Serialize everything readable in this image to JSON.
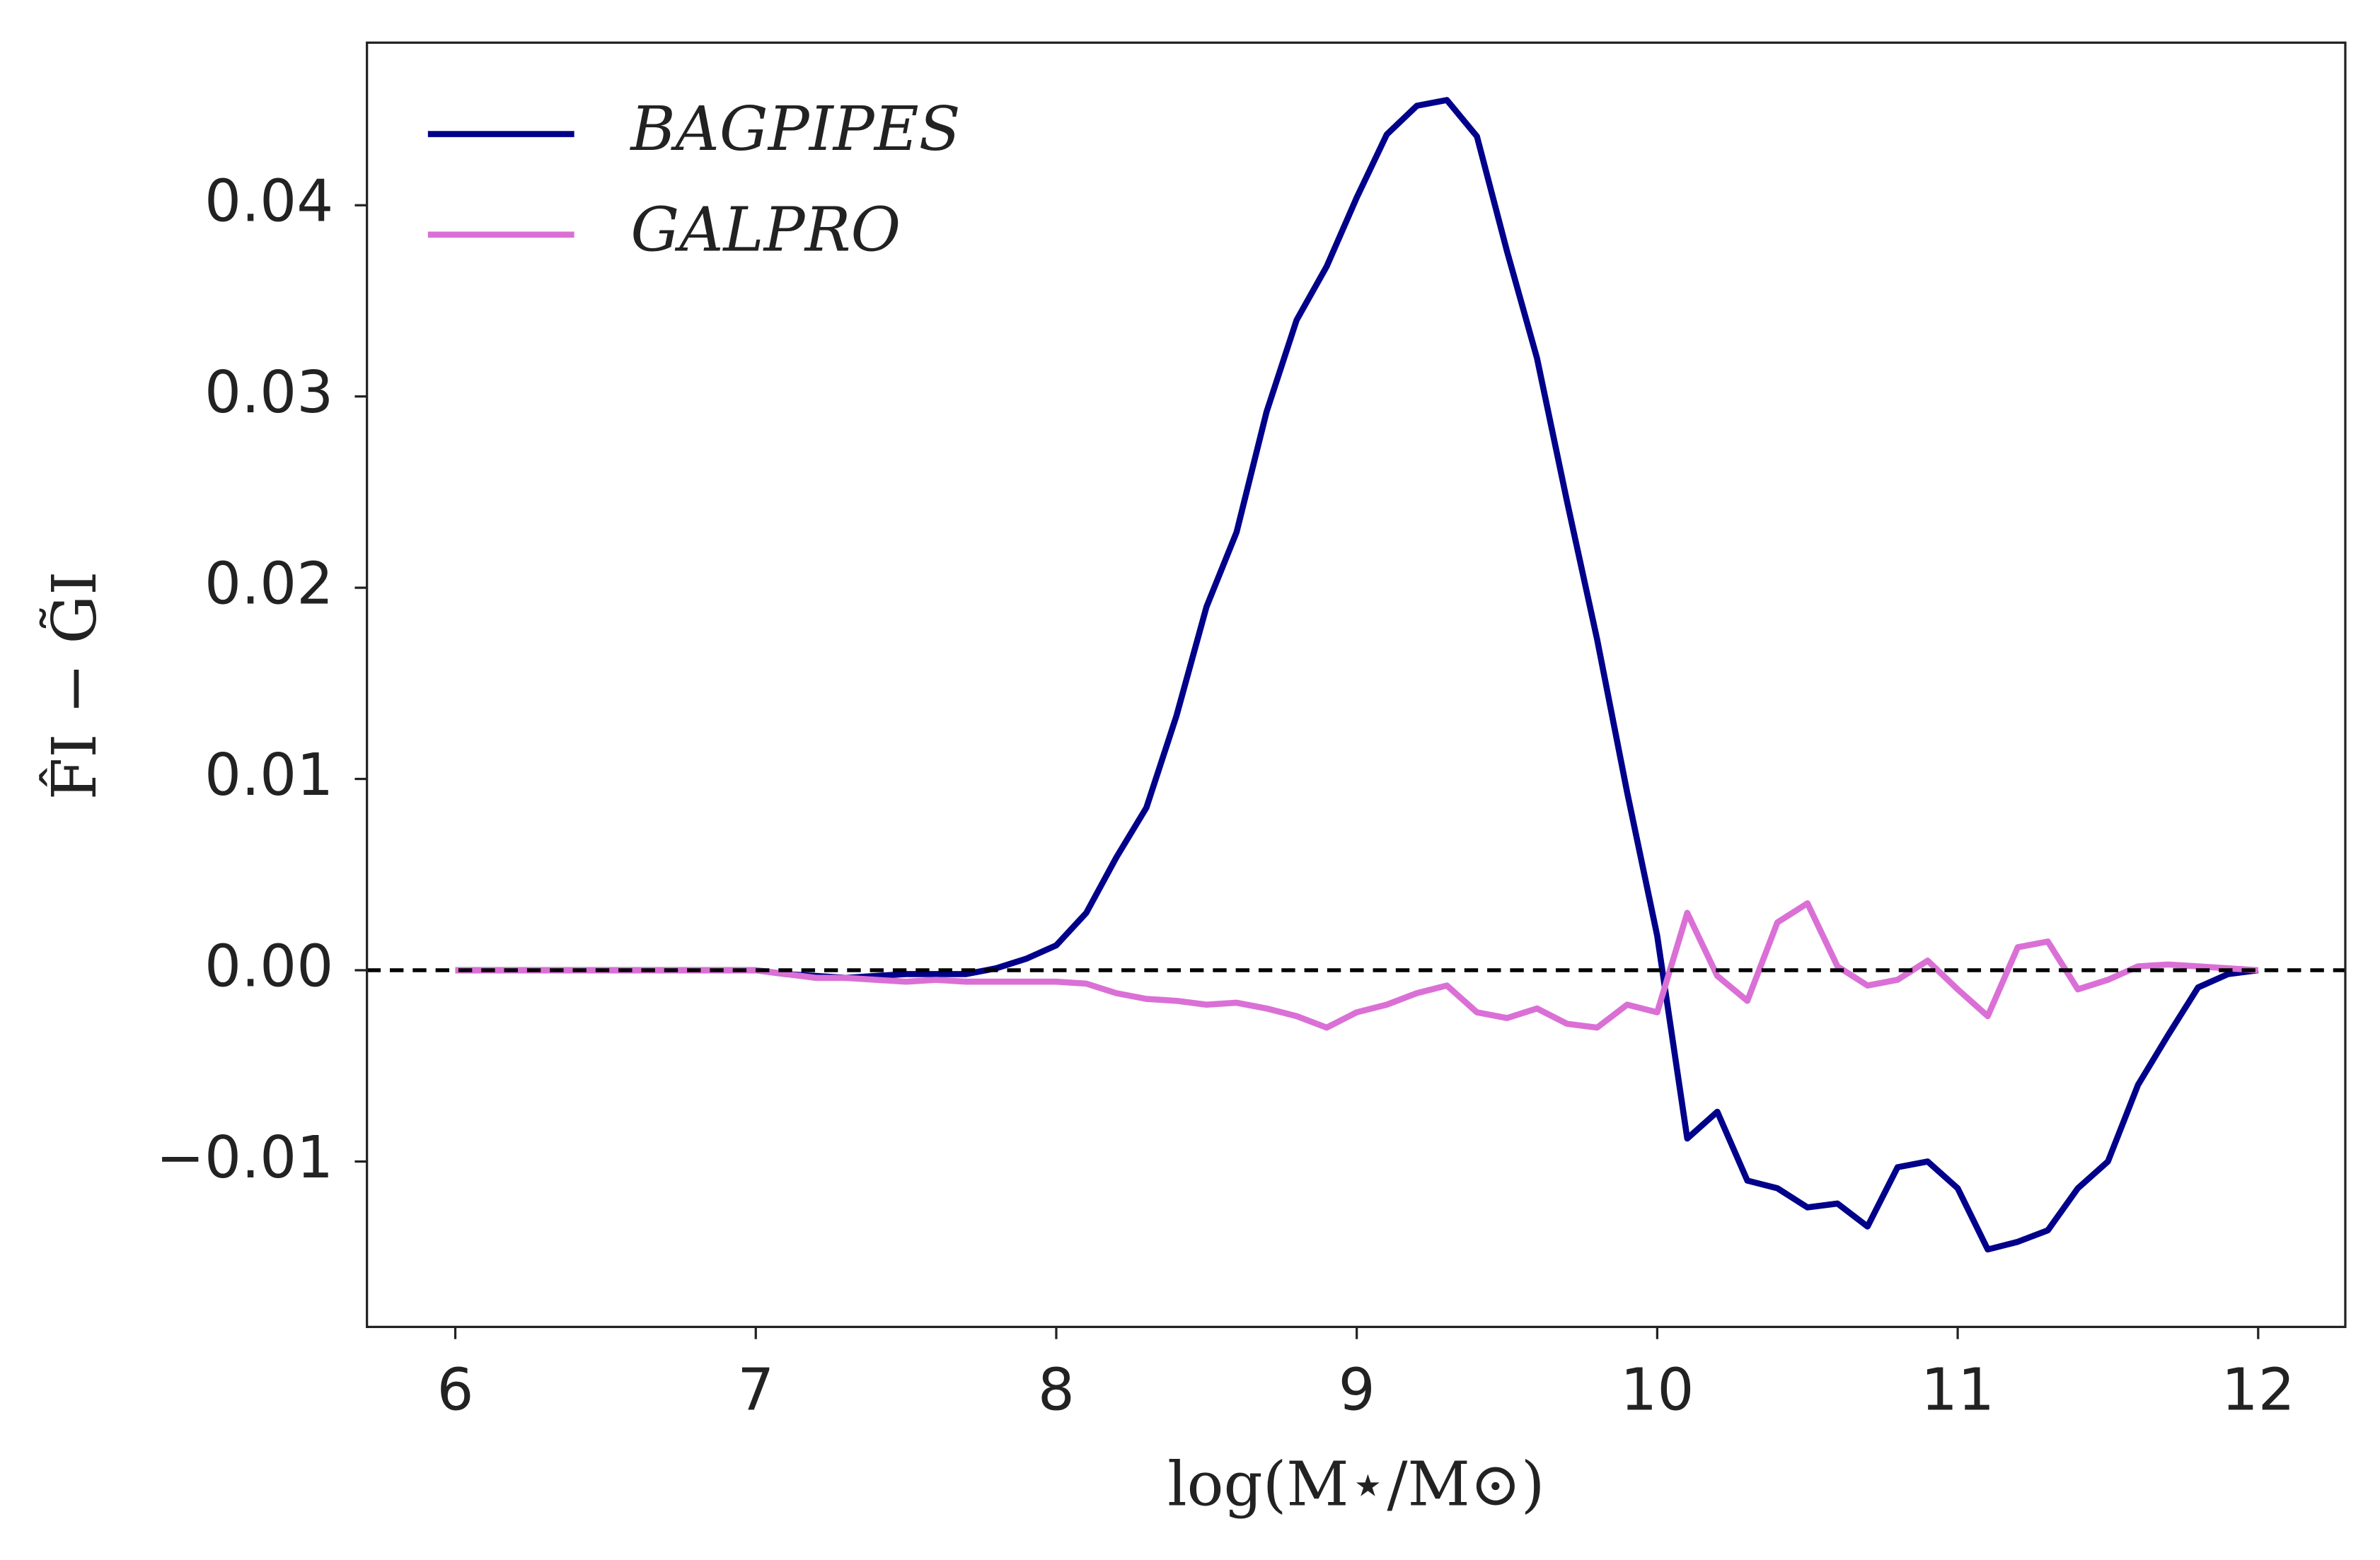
{
  "chart_data": {
    "type": "line",
    "xlabel": "log(M⋆/M⊙)",
    "ylabel": "F̂I − G̃I",
    "x": [
      6.0,
      6.1,
      6.2,
      6.3,
      6.4,
      6.5,
      6.6,
      6.7,
      6.8,
      6.9,
      7.0,
      7.1,
      7.2,
      7.3,
      7.4,
      7.5,
      7.6,
      7.7,
      7.8,
      7.9,
      8.0,
      8.1,
      8.2,
      8.3,
      8.4,
      8.5,
      8.6,
      8.7,
      8.8,
      8.9,
      9.0,
      9.1,
      9.2,
      9.3,
      9.4,
      9.5,
      9.6,
      9.7,
      9.8,
      9.9,
      10.0,
      10.1,
      10.2,
      10.3,
      10.4,
      10.5,
      10.6,
      10.7,
      10.8,
      10.9,
      11.0,
      11.1,
      11.2,
      11.3,
      11.4,
      11.5,
      11.6,
      11.7,
      11.8,
      11.9,
      12.0
    ],
    "series": [
      {
        "name": "BAGPIPES",
        "color": "#00008b",
        "values": [
          0,
          0,
          0,
          0,
          0,
          0,
          0,
          0,
          0,
          0,
          0,
          -0.0002,
          -0.0003,
          -0.0004,
          -0.0003,
          -0.0002,
          -0.0002,
          -0.0002,
          0.0001,
          0.0006,
          0.0013,
          0.003,
          0.0059,
          0.0085,
          0.0133,
          0.019,
          0.0229,
          0.0292,
          0.034,
          0.0368,
          0.0404,
          0.0437,
          0.0452,
          0.0455,
          0.0436,
          0.0376,
          0.032,
          0.0245,
          0.0173,
          0.0093,
          0.0018,
          -0.0088,
          -0.0074,
          -0.011,
          -0.0114,
          -0.0124,
          -0.0122,
          -0.0134,
          -0.0103,
          -0.01,
          -0.0114,
          -0.0146,
          -0.0142,
          -0.0136,
          -0.0114,
          -0.01,
          -0.006,
          -0.0034,
          -0.0009,
          -0.0002,
          0
        ]
      },
      {
        "name": "GALPRO",
        "color": "#da70d6",
        "values": [
          0,
          0,
          0,
          0,
          0,
          0,
          0,
          0,
          0,
          0,
          0,
          -0.0002,
          -0.0004,
          -0.0004,
          -0.0005,
          -0.0006,
          -0.0005,
          -0.0006,
          -0.0006,
          -0.0006,
          -0.0006,
          -0.0007,
          -0.0012,
          -0.0015,
          -0.0016,
          -0.0018,
          -0.0017,
          -0.002,
          -0.0024,
          -0.003,
          -0.0022,
          -0.0018,
          -0.0012,
          -0.0008,
          -0.0022,
          -0.0025,
          -0.002,
          -0.0028,
          -0.003,
          -0.0018,
          -0.0022,
          0.003,
          -0.0003,
          -0.0016,
          0.0025,
          0.0035,
          0.0002,
          -0.0008,
          -0.0005,
          0.0005,
          -0.001,
          -0.0024,
          0.0012,
          0.0015,
          -0.001,
          -0.0005,
          0.0002,
          0.0003,
          0.0002,
          0.0001,
          0
        ]
      }
    ],
    "xlim": [
      5.706,
      12.29
    ],
    "ylim": [
      -0.01865,
      0.0485
    ],
    "xticks": [
      6,
      7,
      8,
      9,
      10,
      11,
      12
    ],
    "yticks": [
      {
        "value": -0.01,
        "label": "−0.01"
      },
      {
        "value": 0,
        "label": "0.00"
      },
      {
        "value": 0.01,
        "label": "0.01"
      },
      {
        "value": 0.02,
        "label": "0.02"
      },
      {
        "value": 0.03,
        "label": "0.03"
      },
      {
        "value": 0.04,
        "label": "0.04"
      }
    ],
    "hline": 0,
    "legend": "upper left"
  }
}
